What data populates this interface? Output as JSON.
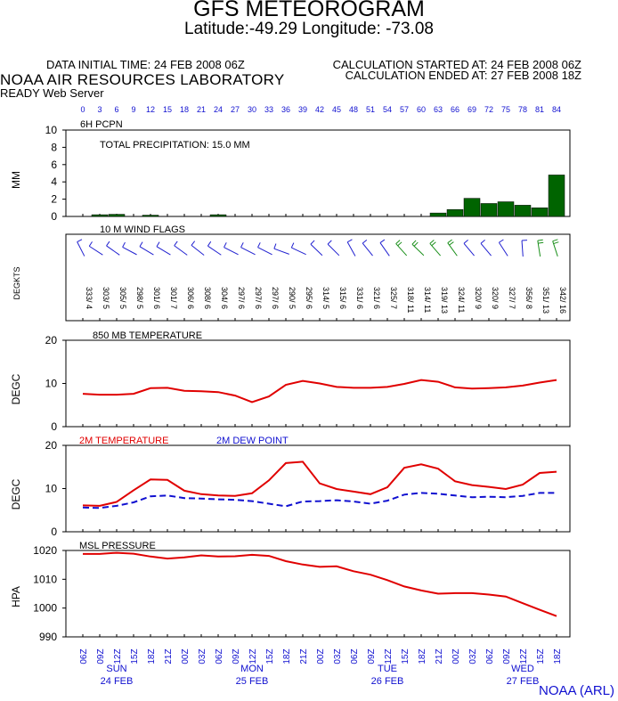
{
  "header": {
    "title": "GFS METEOROGRAM",
    "location": "Latitude:-49.29 Longitude: -73.08",
    "initial_time": "DATA INITIAL TIME: 24 FEB 2008 06Z",
    "calc_started": "CALCULATION STARTED AT: 24 FEB 2008 06Z",
    "calc_ended": "CALCULATION ENDED AT: 27 FEB 2008 18Z",
    "lab": "NOAA AIR RESOURCES LABORATORY",
    "server": "READY Web Server",
    "footer": "NOAA (ARL)"
  },
  "colors": {
    "bar": "#006400",
    "line": "#e00000",
    "dew": "#1010d0",
    "axis_label": "#1010d0"
  },
  "chart_data": [
    {
      "type": "bar",
      "title": "6H PCPN",
      "annotation": "TOTAL PRECIPITATION:  15.0 MM",
      "ylabel": "MM",
      "ylim": [
        0,
        10
      ],
      "yticks": [
        0,
        2,
        4,
        6,
        8,
        10
      ],
      "forecast_hours": [
        "0",
        "3",
        "6",
        "9",
        "12",
        "15",
        "18",
        "21",
        "24",
        "27",
        "30",
        "33",
        "36",
        "39",
        "42",
        "45",
        "48",
        "51",
        "54",
        "57",
        "60",
        "63",
        "66",
        "69",
        "72",
        "75",
        "78",
        "81",
        "84"
      ],
      "values": [
        0,
        0.2,
        0.25,
        0,
        0.15,
        0,
        0,
        0,
        0.2,
        0,
        0,
        0,
        0,
        0,
        0,
        0,
        0,
        0,
        0,
        0,
        0,
        0.4,
        0.8,
        2.1,
        1.5,
        1.7,
        1.3,
        1.0,
        4.8
      ]
    },
    {
      "type": "table",
      "title": "10 M  WIND FLAGS",
      "ylabel": "DEGKTS",
      "values": [
        "333/ 4",
        "303/ 5",
        "305/ 5",
        "298/ 5",
        "301/ 6",
        "301/ 7",
        "306/ 6",
        "308/ 6",
        "304/ 6",
        "297/ 6",
        "297/ 6",
        "297/ 6",
        "290/ 5",
        "295/ 6",
        "314/ 5",
        "315/ 6",
        "331/ 6",
        "321/ 6",
        "325/ 7",
        "318/ 11",
        "314/ 11",
        "319/ 13",
        "324/ 11",
        "320/ 9",
        "320/ 9",
        "327/ 7",
        "356/ 8",
        "351/ 13",
        "342/ 16"
      ]
    },
    {
      "type": "line",
      "title": "850 MB  TEMPERATURE",
      "ylabel": "DEGC",
      "ylim": [
        0,
        20
      ],
      "yticks": [
        0,
        10,
        20
      ],
      "values": [
        7.6,
        7.4,
        7.4,
        7.6,
        8.9,
        9.0,
        8.3,
        8.2,
        8.0,
        7.2,
        5.7,
        7.0,
        9.7,
        10.6,
        10.0,
        9.2,
        9.0,
        9.0,
        9.2,
        9.9,
        10.8,
        10.4,
        9.1,
        8.8,
        8.9,
        9.1,
        9.5,
        10.2,
        10.8
      ]
    },
    {
      "type": "line",
      "ylabel": "DEGC",
      "ylim": [
        0,
        20
      ],
      "yticks": [
        0,
        10,
        20
      ],
      "series": [
        {
          "name": "2M TEMPERATURE",
          "values": [
            6.1,
            6.0,
            6.9,
            9.6,
            12.1,
            12.0,
            9.5,
            8.7,
            8.4,
            8.3,
            8.9,
            11.9,
            15.9,
            16.2,
            11.2,
            9.9,
            9.3,
            8.7,
            10.3,
            14.8,
            15.6,
            14.6,
            11.7,
            10.8,
            10.4,
            9.9,
            10.9,
            13.6,
            13.9
          ]
        },
        {
          "name": "2M  DEW POINT",
          "values": [
            5.6,
            5.5,
            6.0,
            6.8,
            8.2,
            8.4,
            7.8,
            7.7,
            7.5,
            7.4,
            7.1,
            6.5,
            5.9,
            7.0,
            7.1,
            7.3,
            7.0,
            6.5,
            7.2,
            8.6,
            9.0,
            8.8,
            8.4,
            8.0,
            8.1,
            8.0,
            8.3,
            9.0,
            9.0
          ]
        }
      ]
    },
    {
      "type": "line",
      "title": "MSL PRESSURE",
      "ylabel": "HPA",
      "ylim": [
        990,
        1020
      ],
      "yticks": [
        990,
        1000,
        1010,
        1020
      ],
      "values": [
        1018.8,
        1018.8,
        1019.2,
        1018.9,
        1017.9,
        1017.2,
        1017.6,
        1018.3,
        1017.9,
        1018.0,
        1018.5,
        1018.1,
        1016.3,
        1015.1,
        1014.3,
        1014.5,
        1012.8,
        1011.6,
        1009.7,
        1007.5,
        1006.1,
        1005.0,
        1005.2,
        1005.2,
        1004.7,
        1004.0,
        1001.7,
        999.4,
        997.2
      ]
    }
  ],
  "time_labels": [
    "06Z",
    "09Z",
    "12Z",
    "15Z",
    "18Z",
    "21Z",
    "00Z",
    "03Z",
    "06Z",
    "09Z",
    "12Z",
    "15Z",
    "18Z",
    "21Z",
    "00Z",
    "03Z",
    "06Z",
    "09Z",
    "12Z",
    "15Z",
    "18Z",
    "21Z",
    "00Z",
    "03Z",
    "06Z",
    "09Z",
    "12Z",
    "15Z",
    "18Z"
  ],
  "days": [
    {
      "day": "SUN",
      "date": "24 FEB",
      "index": 2
    },
    {
      "day": "MON",
      "date": "25 FEB",
      "index": 10
    },
    {
      "day": "TUE",
      "date": "26 FEB",
      "index": 18
    },
    {
      "day": "WED",
      "date": "27 FEB",
      "index": 26
    }
  ]
}
